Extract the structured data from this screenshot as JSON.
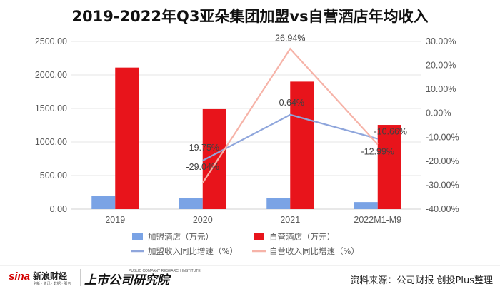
{
  "chart_data": {
    "type": "bar",
    "title": "2019-2022年Q3亚朵集团加盟vs自营酒店年均收入",
    "categories": [
      "2019",
      "2020",
      "2021",
      "2022M1-M9"
    ],
    "series": [
      {
        "name": "加盟酒店（万元）",
        "kind": "bar",
        "axis": "left",
        "color": "#7aa3e5",
        "values": [
          200,
          160,
          160,
          105
        ]
      },
      {
        "name": "自营酒店（万元）",
        "kind": "bar",
        "axis": "left",
        "color": "#e8141b",
        "values": [
          2110,
          1490,
          1900,
          1255
        ]
      },
      {
        "name": "加盟收入同比增速（%）",
        "kind": "line",
        "axis": "right",
        "color": "#8fa6dc",
        "values": [
          null,
          -19.75,
          -0.64,
          -10.66
        ],
        "labels": [
          "",
          "-19.75%",
          "-0.64%",
          "-10.66%"
        ]
      },
      {
        "name": "自营收入同比增速（%）",
        "kind": "line",
        "axis": "right",
        "color": "#f6b3a8",
        "values": [
          null,
          -29.04,
          26.94,
          -12.99
        ],
        "labels": [
          "",
          "-29.04%",
          "26.94%",
          "-12.99%"
        ]
      }
    ],
    "y_left": {
      "min": 0,
      "max": 2500,
      "step": 500,
      "ticks": [
        "0.00",
        "500.00",
        "1000.00",
        "1500.00",
        "2000.00",
        "2500.00"
      ]
    },
    "y_right": {
      "min": -40,
      "max": 30,
      "step": 10,
      "ticks": [
        "-40.00%",
        "-30.00%",
        "-20.00%",
        "-10.00%",
        "0.00%",
        "10.00%",
        "20.00%",
        "30.00%"
      ]
    },
    "grid": true,
    "legend_position": "bottom"
  },
  "footer": {
    "source": "资料来源：公司财报 创投Plus整理",
    "logo_sina": "sina",
    "logo_sina_cn": "新浪财经",
    "logo_sina_sub": "全新 · 资讯 · 数据 · 服务",
    "logo_institute": "上市公司研究院",
    "logo_institute_en": "PUBLIC COMPANY RESEARCH INSTITUTE"
  }
}
